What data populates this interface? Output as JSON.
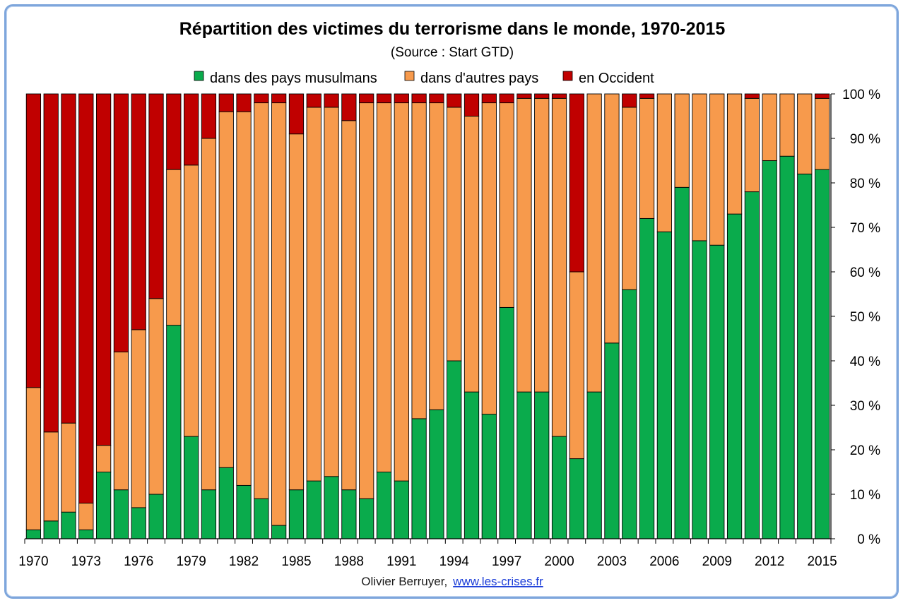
{
  "chart_data": {
    "type": "bar",
    "stacked": true,
    "title": "Répartition des victimes du terrorisme dans le monde, 1970-2015",
    "subtitle": "(Source : Start GTD)",
    "xlabel": "",
    "ylabel": "",
    "ylim": [
      0,
      100
    ],
    "y_ticks": [
      "0 %",
      "10 %",
      "20 %",
      "30 %",
      "40 %",
      "50 %",
      "60 %",
      "70 %",
      "80 %",
      "90 %",
      "100 %"
    ],
    "x_tick_labels": [
      "1970",
      "1973",
      "1976",
      "1979",
      "1982",
      "1985",
      "1988",
      "1991",
      "1994",
      "1997",
      "2000",
      "2003",
      "2006",
      "2009",
      "2012",
      "2015"
    ],
    "legend_position": "top",
    "grid": false,
    "categories": [
      "1970",
      "1971",
      "1972",
      "1973",
      "1974",
      "1975",
      "1976",
      "1977",
      "1978",
      "1979",
      "1980",
      "1981",
      "1982",
      "1983",
      "1984",
      "1985",
      "1986",
      "1987",
      "1988",
      "1989",
      "1990",
      "1991",
      "1992",
      "1993",
      "1994",
      "1995",
      "1996",
      "1997",
      "1998",
      "1999",
      "2000",
      "2001",
      "2002",
      "2003",
      "2004",
      "2005",
      "2006",
      "2007",
      "2008",
      "2009",
      "2010",
      "2011",
      "2012",
      "2013",
      "2014",
      "2015"
    ],
    "series": [
      {
        "name": "dans des pays musulmans",
        "color": "#0aab4c",
        "values": [
          2,
          4,
          6,
          2,
          15,
          11,
          7,
          10,
          48,
          23,
          11,
          16,
          12,
          9,
          3,
          11,
          13,
          14,
          11,
          9,
          15,
          13,
          27,
          29,
          40,
          33,
          28,
          52,
          33,
          33,
          23,
          18,
          33,
          44,
          56,
          72,
          69,
          79,
          67,
          66,
          73,
          78,
          85,
          86,
          82,
          83
        ]
      },
      {
        "name": "dans d'autres pays",
        "color": "#f79a4c",
        "values": [
          32,
          20,
          20,
          6,
          6,
          31,
          40,
          44,
          35,
          61,
          79,
          80,
          84,
          89,
          95,
          80,
          84,
          83,
          83,
          89,
          83,
          85,
          71,
          69,
          57,
          62,
          70,
          46,
          66,
          66,
          76,
          42,
          67,
          56,
          41,
          27,
          31,
          21,
          33,
          34,
          27,
          21,
          15,
          14,
          18,
          16
        ]
      },
      {
        "name": "en Occident",
        "color": "#c00000",
        "values": [
          66,
          76,
          74,
          92,
          79,
          58,
          53,
          46,
          17,
          16,
          10,
          4,
          4,
          2,
          2,
          9,
          3,
          3,
          6,
          2,
          2,
          2,
          2,
          2,
          3,
          5,
          2,
          2,
          1,
          1,
          1,
          40,
          0,
          0,
          3,
          1,
          0,
          0,
          0,
          0,
          0,
          1,
          0,
          0,
          0,
          1
        ]
      }
    ]
  },
  "footer": {
    "author": "Olivier Berruyer,",
    "link": "www.les-crises.fr"
  }
}
